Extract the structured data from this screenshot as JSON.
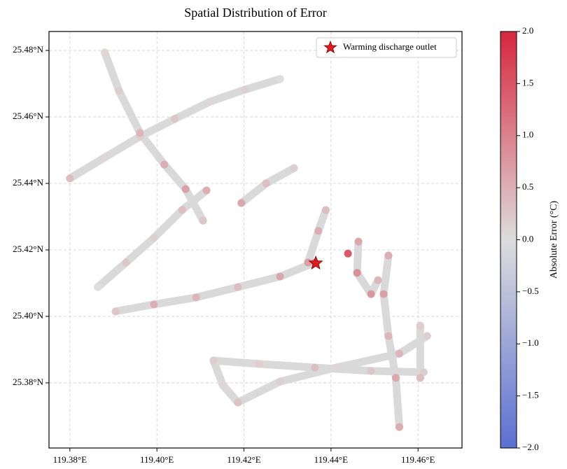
{
  "chart_data": {
    "type": "scatter",
    "title": "Spatial Distribution of Error",
    "xlim": [
      119.3752,
      119.4701
    ],
    "ylim": [
      25.3604,
      25.4857
    ],
    "xticks": [
      {
        "value": 119.38,
        "label": "119.38°E"
      },
      {
        "value": 119.4,
        "label": "119.40°E"
      },
      {
        "value": 119.42,
        "label": "119.42°E"
      },
      {
        "value": 119.44,
        "label": "119.44°E"
      },
      {
        "value": 119.46,
        "label": "119.46°E"
      }
    ],
    "yticks": [
      {
        "value": 25.38,
        "label": "25.38°N"
      },
      {
        "value": 25.4,
        "label": "25.40°N"
      },
      {
        "value": 25.42,
        "label": "25.42°N"
      },
      {
        "value": 25.44,
        "label": "25.44°N"
      },
      {
        "value": 25.46,
        "label": "25.46°N"
      },
      {
        "value": 25.48,
        "label": "25.48°N"
      }
    ],
    "grid": true,
    "track_color": "#d9d9d9",
    "tracks": [
      {
        "x": [
          119.38,
          119.388,
          119.3961,
          119.4041,
          119.4122,
          119.4202,
          119.4283
        ],
        "y": [
          25.4415,
          25.4478,
          25.4541,
          25.4594,
          25.4646,
          25.4682,
          25.4714
        ],
        "values": [
          0.4,
          0.1,
          0.2,
          0.3,
          0.1,
          0.2,
          0.0
        ]
      },
      {
        "x": [
          119.388,
          119.3913,
          119.3961,
          119.4017,
          119.4066,
          119.4106
        ],
        "y": [
          25.4794,
          25.4678,
          25.4552,
          25.4457,
          25.4383,
          25.4288
        ],
        "values": [
          0.1,
          0.2,
          0.5,
          0.6,
          0.8,
          0.3
        ]
      },
      {
        "x": [
          119.3864,
          119.3929,
          119.3993,
          119.4058,
          119.4114
        ],
        "y": [
          25.4088,
          25.4162,
          25.4236,
          25.432,
          25.4379
        ],
        "values": [
          0.0,
          0.3,
          0.2,
          0.4,
          0.6
        ]
      },
      {
        "x": [
          119.3905,
          119.3993,
          119.409,
          119.4186,
          119.4283,
          119.4363
        ],
        "y": [
          25.4015,
          25.4036,
          25.4057,
          25.4088,
          25.412,
          25.4162
        ],
        "values": [
          0.3,
          0.6,
          0.5,
          0.4,
          0.7,
          0.9
        ]
      },
      {
        "x": [
          119.4194,
          119.4251,
          119.4315
        ],
        "y": [
          25.4341,
          25.44,
          25.4446
        ],
        "values": [
          0.7,
          0.4,
          0.2
        ]
      },
      {
        "x": [
          119.4347,
          119.4371,
          119.4388
        ],
        "y": [
          25.4162,
          25.4257,
          25.432
        ],
        "values": [
          0.8,
          0.6,
          0.4
        ]
      },
      {
        "x": [
          119.413,
          119.4235,
          119.4363,
          119.4492,
          119.4613
        ],
        "y": [
          25.3867,
          25.3857,
          25.3846,
          25.3836,
          25.3832
        ],
        "values": [
          0.1,
          0.2,
          0.4,
          0.3,
          0.2
        ]
      },
      {
        "x": [
          119.4186,
          119.4283,
          119.4412,
          119.4557,
          119.4621
        ],
        "y": [
          25.3741,
          25.3804,
          25.3846,
          25.3888,
          25.3941
        ],
        "values": [
          0.3,
          0.2,
          0.1,
          0.5,
          0.2
        ]
      },
      {
        "x": [
          119.4532,
          119.4521,
          119.4532,
          119.4549,
          119.4557
        ],
        "y": [
          25.4183,
          25.4067,
          25.3941,
          25.3815,
          25.3667
        ],
        "values": [
          0.6,
          0.8,
          0.5,
          0.7,
          0.6
        ]
      },
      {
        "x": [
          119.4463,
          119.446,
          119.4492,
          119.4508
        ],
        "y": [
          25.4225,
          25.4131,
          25.4067,
          25.4109
        ],
        "values": [
          0.7,
          1.0,
          0.9,
          0.5
        ]
      },
      {
        "x": [
          119.4605,
          119.4605
        ],
        "y": [
          25.3972,
          25.3815
        ],
        "values": [
          0.2,
          0.4
        ]
      },
      {
        "x": [
          119.413,
          119.4151,
          119.4186
        ],
        "y": [
          25.3867,
          25.3794,
          25.3741
        ],
        "values": [
          0.2,
          0.1,
          0.3
        ]
      },
      {
        "x": [
          119.4439
        ],
        "y": [
          25.4189
        ],
        "values": [
          1.8
        ]
      }
    ],
    "marker": {
      "name": "Warming discharge outlet",
      "x": 119.4365,
      "y": 25.416,
      "color": "#e31a1c"
    },
    "colorbar": {
      "label": "Absolute Error (°C)",
      "lim": [
        -2,
        2
      ],
      "colormap": [
        "#5b6fd3",
        "#dddddd",
        "#d8263d"
      ],
      "ticks": [
        {
          "value": -2,
          "label": "−2.0"
        },
        {
          "value": -1.5,
          "label": "−1.5"
        },
        {
          "value": -1,
          "label": "−1.0"
        },
        {
          "value": -0.5,
          "label": "−0.5"
        },
        {
          "value": 0,
          "label": "0.0"
        },
        {
          "value": 0.5,
          "label": "0.5"
        },
        {
          "value": 1,
          "label": "1.0"
        },
        {
          "value": 1.5,
          "label": "1.5"
        },
        {
          "value": 2,
          "label": "2.0"
        }
      ]
    }
  }
}
